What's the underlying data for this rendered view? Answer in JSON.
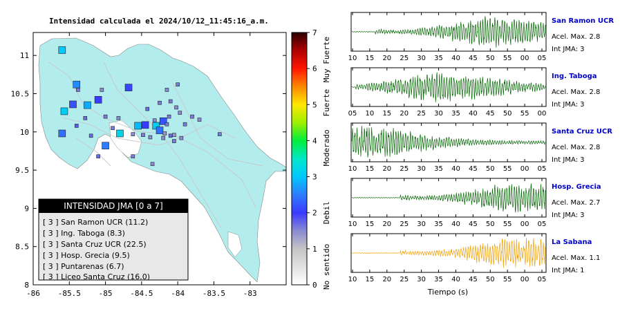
{
  "title": "Intensidad calculada el 2024/10/12_11:45:16_a.m.",
  "map": {
    "x_ticks": [
      "-86",
      "-85.5",
      "-85",
      "-84.5",
      "-84",
      "-83.5",
      "-83"
    ],
    "y_ticks": [
      "11",
      "10.5",
      "10",
      "9.5",
      "9",
      "8.5",
      "8"
    ],
    "colors": {
      "land": "#b2ecec",
      "ocean": "#ffffff",
      "roads": "#c8c8c8"
    }
  },
  "legend": {
    "title": "INTENSIDAD JMA [0 a 7]",
    "items": [
      "[ 3 ]  San Ramon UCR (11.2)",
      "[ 3 ]  Ing. Taboga (8.3)",
      "[ 3 ]  Santa Cruz UCR (22.5)",
      "[ 3 ]  Hosp. Grecia (9.5)",
      "[ 3 ]  Puntarenas (6.7)",
      "[ 3 ]  Liceo Santa Cruz (16.0)"
    ]
  },
  "colorbar": {
    "ticks": [
      "0",
      "1",
      "2",
      "3",
      "4",
      "5",
      "6",
      "7"
    ],
    "levels": [
      {
        "label": "No sentido",
        "from": 0,
        "to": 1
      },
      {
        "label": "Debil",
        "from": 1,
        "to": 3
      },
      {
        "label": "Moderado",
        "from": 3,
        "to": 4.6
      },
      {
        "label": "Fuerte",
        "from": 4.6,
        "to": 5.5
      },
      {
        "label": "Muy Fuerte",
        "from": 5.5,
        "to": 7
      }
    ],
    "gradient": [
      {
        "v": 0,
        "c": "#ffffff"
      },
      {
        "v": 1,
        "c": "#c4c4c4"
      },
      {
        "v": 1.5,
        "c": "#8a8ad2"
      },
      {
        "v": 2,
        "c": "#3a3aff"
      },
      {
        "v": 2.5,
        "c": "#2d7cff"
      },
      {
        "v": 3,
        "c": "#00c8ff"
      },
      {
        "v": 3.5,
        "c": "#00e8c8"
      },
      {
        "v": 4,
        "c": "#00ee3a"
      },
      {
        "v": 4.5,
        "c": "#a0ee00"
      },
      {
        "v": 5,
        "c": "#ffe800"
      },
      {
        "v": 5.5,
        "c": "#ff8800"
      },
      {
        "v": 6,
        "c": "#ff1500"
      },
      {
        "v": 6.5,
        "c": "#b00000"
      },
      {
        "v": 7,
        "c": "#2a0000"
      }
    ]
  },
  "stations": [
    {
      "lon": -85.6,
      "lat": 11.07,
      "i": 3.0,
      "big": true
    },
    {
      "lon": -85.4,
      "lat": 10.62,
      "i": 2.6,
      "big": true
    },
    {
      "lon": -85.45,
      "lat": 10.36,
      "i": 2.2,
      "big": true
    },
    {
      "lon": -85.57,
      "lat": 10.27,
      "i": 3.1,
      "big": true
    },
    {
      "lon": -85.25,
      "lat": 10.35,
      "i": 2.8,
      "big": true
    },
    {
      "lon": -85.6,
      "lat": 9.98,
      "i": 2.4,
      "big": true
    },
    {
      "lon": -84.8,
      "lat": 9.98,
      "i": 3.2,
      "big": true
    },
    {
      "lon": -84.55,
      "lat": 10.08,
      "i": 2.9,
      "big": true
    },
    {
      "lon": -84.3,
      "lat": 10.08,
      "i": 3.1,
      "big": true
    },
    {
      "lon": -84.2,
      "lat": 10.14,
      "i": 2.2,
      "big": true
    },
    {
      "lon": -85.0,
      "lat": 9.82,
      "i": 2.5,
      "big": true
    },
    {
      "lon": -84.45,
      "lat": 10.09,
      "i": 2.0,
      "big": true
    },
    {
      "lon": -85.1,
      "lat": 10.42,
      "i": 2.0,
      "big": true
    },
    {
      "lon": -84.68,
      "lat": 10.58,
      "i": 2.1,
      "big": true
    },
    {
      "lon": -84.25,
      "lat": 10.02,
      "i": 2.4,
      "big": true
    },
    {
      "lon": -85.0,
      "lat": 10.2,
      "i": 1.6,
      "big": false
    },
    {
      "lon": -84.82,
      "lat": 10.18,
      "i": 1.5,
      "big": false
    },
    {
      "lon": -85.2,
      "lat": 9.95,
      "i": 1.7,
      "big": false
    },
    {
      "lon": -84.1,
      "lat": 10.4,
      "i": 1.6,
      "big": false
    },
    {
      "lon": -84.02,
      "lat": 10.32,
      "i": 1.5,
      "big": false
    },
    {
      "lon": -83.9,
      "lat": 10.1,
      "i": 1.6,
      "big": false
    },
    {
      "lon": -84.15,
      "lat": 10.55,
      "i": 1.5,
      "big": false
    },
    {
      "lon": -84.0,
      "lat": 10.62,
      "i": 1.6,
      "big": false
    },
    {
      "lon": -85.4,
      "lat": 10.08,
      "i": 1.8,
      "big": false
    },
    {
      "lon": -85.1,
      "lat": 9.68,
      "i": 1.7,
      "big": false
    },
    {
      "lon": -84.62,
      "lat": 9.68,
      "i": 1.6,
      "big": false
    },
    {
      "lon": -84.35,
      "lat": 9.58,
      "i": 1.5,
      "big": false
    },
    {
      "lon": -84.05,
      "lat": 9.88,
      "i": 1.6,
      "big": false
    },
    {
      "lon": -83.95,
      "lat": 9.92,
      "i": 1.5,
      "big": false
    },
    {
      "lon": -84.1,
      "lat": 9.95,
      "i": 1.7,
      "big": false
    },
    {
      "lon": -84.18,
      "lat": 9.98,
      "i": 1.4,
      "big": false
    },
    {
      "lon": -84.38,
      "lat": 9.93,
      "i": 1.5,
      "big": false
    },
    {
      "lon": -84.48,
      "lat": 9.96,
      "i": 1.6,
      "big": false
    },
    {
      "lon": -84.62,
      "lat": 9.97,
      "i": 1.5,
      "big": false
    },
    {
      "lon": -83.8,
      "lat": 10.2,
      "i": 1.6,
      "big": false
    },
    {
      "lon": -83.7,
      "lat": 10.16,
      "i": 1.5,
      "big": false
    },
    {
      "lon": -83.42,
      "lat": 9.97,
      "i": 1.6,
      "big": false
    },
    {
      "lon": -84.42,
      "lat": 10.3,
      "i": 1.7,
      "big": false
    },
    {
      "lon": -84.25,
      "lat": 10.38,
      "i": 1.6,
      "big": false
    },
    {
      "lon": -83.97,
      "lat": 10.25,
      "i": 1.5,
      "big": false
    },
    {
      "lon": -84.12,
      "lat": 10.2,
      "i": 1.6,
      "big": false
    },
    {
      "lon": -85.28,
      "lat": 10.18,
      "i": 1.7,
      "big": false
    },
    {
      "lon": -85.38,
      "lat": 10.55,
      "i": 1.6,
      "big": false
    },
    {
      "lon": -85.05,
      "lat": 10.55,
      "i": 1.5,
      "big": false
    },
    {
      "lon": -84.9,
      "lat": 10.05,
      "i": 1.6,
      "big": false
    },
    {
      "lon": -84.2,
      "lat": 9.92,
      "i": 1.5,
      "big": false
    },
    {
      "lon": -84.05,
      "lat": 9.96,
      "i": 1.4,
      "big": false
    },
    {
      "lon": -84.15,
      "lat": 10.1,
      "i": 1.6,
      "big": false
    },
    {
      "lon": -84.32,
      "lat": 10.15,
      "i": 1.5,
      "big": false
    }
  ],
  "waveforms": {
    "xlabel": "Tiempo (s)",
    "panels": [
      {
        "station": "San Ramon UCR",
        "acel": "Acel. Max. 2.8",
        "jma": "Int JMA: 3",
        "color": "#006400",
        "ticks": [
          "10",
          "15",
          "20",
          "25",
          "30",
          "35",
          "40",
          "45",
          "50",
          "55",
          "00",
          "05"
        ],
        "onset": 0.12,
        "peak": 0.72,
        "amp": 0.9
      },
      {
        "station": "Ing. Taboga",
        "acel": "Acel. Max. 2.8",
        "jma": "Int JMA: 3",
        "color": "#006400",
        "ticks": [
          "05",
          "10",
          "15",
          "20",
          "25",
          "30",
          "35",
          "40",
          "45",
          "50",
          "55",
          "00"
        ],
        "onset": 0.02,
        "peak": 0.45,
        "amp": 0.85
      },
      {
        "station": "Santa Cruz UCR",
        "acel": "Acel. Max. 2.8",
        "jma": "Int JMA: 3",
        "color": "#006400",
        "ticks": [
          "10",
          "15",
          "20",
          "25",
          "30",
          "35",
          "40",
          "45",
          "50",
          "55",
          "00",
          "05"
        ],
        "onset": 0.0,
        "peak": 0.04,
        "amp": 0.95
      },
      {
        "station": "Hosp. Grecia",
        "acel": "Acel. Max. 2.7",
        "jma": "Int JMA: 3",
        "color": "#006400",
        "ticks": [
          "10",
          "15",
          "20",
          "25",
          "30",
          "35",
          "40",
          "45",
          "50",
          "55",
          "00",
          "05"
        ],
        "onset": 0.25,
        "peak": 0.85,
        "amp": 0.9
      },
      {
        "station": "La Sabana",
        "acel": "Acel. Max. 1.1",
        "jma": "Int JMA: 1",
        "color": "#f0a000",
        "ticks": [
          "10",
          "15",
          "20",
          "25",
          "30",
          "35",
          "40",
          "45",
          "50",
          "55",
          "00",
          "05"
        ],
        "onset": 0.25,
        "peak": 0.84,
        "amp": 0.9
      }
    ]
  }
}
